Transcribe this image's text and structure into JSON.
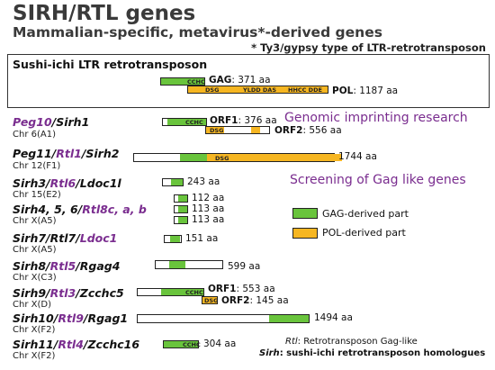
{
  "header": {
    "title": "SIRH/RTL genes",
    "subtitle": "Mammalian-specific, metavirus*-derived genes",
    "note": "* Ty3/gypsy type of LTR-retrotransposon"
  },
  "sushi": {
    "title": "Sushi-ichi LTR retrotransposon",
    "cchc": "CCHC",
    "gag_name": "GAG",
    "gag_len": ": 371 aa",
    "pol_domains": [
      "DSG",
      "YLDD DAS",
      "HHCC DDE"
    ],
    "pol_name": "POL",
    "pol_len": ": 1187 aa"
  },
  "sections": {
    "imprinting": "Genomic imprinting research",
    "screening": "Screening of Gag like genes"
  },
  "genes": {
    "peg10": {
      "p1": "Peg10",
      "p2": "/Sirh1",
      "chr": "Chr 6(A1)",
      "cchc": "CCHC",
      "dsg": "DSG",
      "orf1": "ORF1",
      "orf1_len": ": 376 aa",
      "orf2": "ORF2",
      "orf2_len": ": 556 aa"
    },
    "peg11": {
      "p1": "Peg11",
      "p2": "/",
      "p3": "Rtl1",
      "p4": "/Sirh2",
      "chr": "Chr 12(F1)",
      "dsg": "DSG",
      "len": "1744 aa"
    },
    "sirh3": {
      "p1": "Sirh3/",
      "p2": "Rtl6",
      "p3": "/Ldoc1l",
      "chr": "Chr 15(E2)",
      "len": "243 aa"
    },
    "sirh456": {
      "p1": "Sirh4, 5, 6/",
      "p2": "Rtl8c, a, b",
      "chr": "Chr X(A5)",
      "len1": "112 aa",
      "len2": "113 aa",
      "len3": "113 aa"
    },
    "sirh7": {
      "p1": "Sirh7/Rtl7/",
      "p2": "Ldoc1",
      "chr": "Chr X(A5)",
      "len": "151 aa"
    },
    "sirh8": {
      "p1": "Sirh8/",
      "p2": "Rtl5",
      "p3": "/Rgag4",
      "chr": "Chr X(C3)",
      "len": "599 aa"
    },
    "sirh9": {
      "p1": "Sirh9/",
      "p2": "Rtl3",
      "p3": "/Zcchc5",
      "chr": "Chr X(D)",
      "cchc": "CCHC",
      "dsg": "DSG",
      "orf1": "ORF1",
      "orf1_len": ": 553 aa",
      "orf2": "ORF2",
      "orf2_len": ": 145 aa"
    },
    "sirh10": {
      "p1": "Sirh10/",
      "p2": "Rtl9",
      "p3": "/Rgag1",
      "chr": "Chr X(F2)",
      "len": "1494 aa"
    },
    "sirh11": {
      "p1": "Sirh11/",
      "p2": "Rtl4",
      "p3": "/Zcchc16",
      "chr": "Chr X(F2)",
      "cchc": "CCHC",
      "len": "304 aa"
    }
  },
  "legend": {
    "gag": "GAG-derived part",
    "pol": "POL-derived part",
    "colors": {
      "gag": "#69c43c",
      "pol": "#f6b622"
    }
  },
  "footnotes": {
    "rtl_term": "Rtl",
    "rtl_def": ": Retrotransposon Gag-like",
    "sirh_term": "Sirh",
    "sirh_def": ": sushi-ichi retrotransposon homologues"
  }
}
